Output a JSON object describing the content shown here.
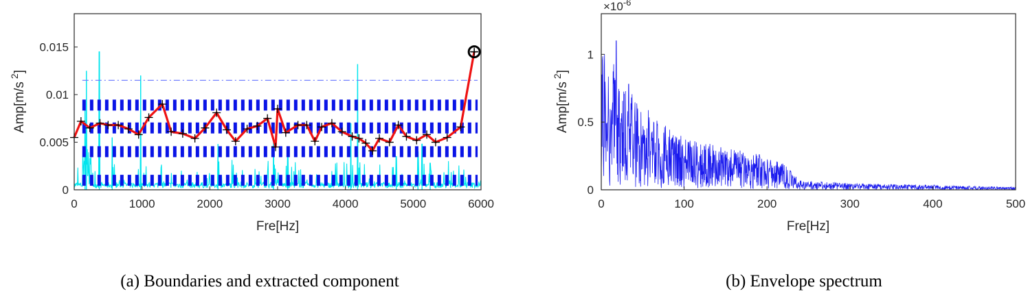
{
  "captions": {
    "a": "(a) Boundaries and extracted component",
    "b": "(b) Envelope spectrum"
  },
  "chart_data": [
    {
      "type": "line",
      "xlabel": "Fre[Hz]",
      "ylabel": "Amp[m/s 2]",
      "ylabel_main": "Amp[m/s",
      "ylabel_sup": "2",
      "ylabel_close": "]",
      "xlim": [
        0,
        6000
      ],
      "ylim": [
        0,
        0.0185
      ],
      "x_ticks": [
        "0",
        "1000",
        "2000",
        "3000",
        "4000",
        "5000",
        "6000"
      ],
      "x_tick_values": [
        0,
        1000,
        2000,
        3000,
        4000,
        5000,
        6000
      ],
      "y_ticks": [
        "0",
        "0.005",
        "0.01",
        "0.015"
      ],
      "y_tick_values": [
        0,
        0.005,
        0.01,
        0.015
      ],
      "grid": false,
      "colors": {
        "spectrum": "#00e5ee",
        "boundaries": "#0a14e6",
        "threshold": "#6f7cff",
        "component": "#ee1111",
        "markers": "#000000"
      },
      "series": [
        {
          "style": "red-line-with-plus-markers",
          "x": [
            0,
            100,
            230,
            380,
            500,
            650,
            800,
            950,
            1100,
            1300,
            1430,
            1600,
            1780,
            1930,
            2100,
            2250,
            2380,
            2550,
            2700,
            2850,
            2970,
            3000,
            3120,
            3300,
            3430,
            3550,
            3650,
            3800,
            3950,
            4100,
            4200,
            4300,
            4400,
            4500,
            4650,
            4780,
            4900,
            5050,
            5200,
            5330,
            5500,
            5700,
            5900
          ],
          "y": [
            0.0055,
            0.0072,
            0.0065,
            0.007,
            0.0068,
            0.0068,
            0.0064,
            0.0058,
            0.0076,
            0.009,
            0.0061,
            0.0059,
            0.0054,
            0.0065,
            0.0081,
            0.0063,
            0.0051,
            0.0064,
            0.0067,
            0.0075,
            0.0045,
            0.0085,
            0.006,
            0.0068,
            0.0068,
            0.0051,
            0.0066,
            0.007,
            0.0061,
            0.0056,
            0.0054,
            0.0049,
            0.0041,
            0.0054,
            0.005,
            0.0068,
            0.0056,
            0.0052,
            0.0058,
            0.005,
            0.0055,
            0.0066,
            0.0145
          ]
        },
        {
          "style": "threshold-dashdot",
          "y": 0.0115,
          "x_range": [
            120,
            5950
          ]
        }
      ],
      "boundary_levels": [
        0.001,
        0.004,
        0.0065,
        0.0089
      ],
      "spectrum_peaks": [
        {
          "x": 180,
          "y": 0.0125
        },
        {
          "x": 370,
          "y": 0.0145
        },
        {
          "x": 980,
          "y": 0.012
        },
        {
          "x": 4180,
          "y": 0.0132
        },
        {
          "x": 160,
          "y": 0.009
        },
        {
          "x": 560,
          "y": 0.0055
        },
        {
          "x": 2120,
          "y": 0.0048
        },
        {
          "x": 2940,
          "y": 0.0052
        },
        {
          "x": 3150,
          "y": 0.0045
        },
        {
          "x": 4080,
          "y": 0.007
        },
        {
          "x": 4750,
          "y": 0.0035
        },
        {
          "x": 5070,
          "y": 0.004
        },
        {
          "x": 5130,
          "y": 0.0048
        },
        {
          "x": 5250,
          "y": 0.0028
        }
      ],
      "highlight_point": {
        "x": 5900,
        "y": 0.0145
      }
    },
    {
      "type": "line",
      "xlabel": "Fre[Hz]",
      "ylabel": "Amp[m/s 2]",
      "ylabel_main": "Amp[m/s",
      "ylabel_sup": "2",
      "ylabel_close": "]",
      "exponent_base": "×10",
      "exponent_power": "-6",
      "xlim": [
        0,
        500
      ],
      "ylim": [
        0,
        1.3
      ],
      "x_ticks": [
        "0",
        "100",
        "200",
        "300",
        "400",
        "500"
      ],
      "x_tick_values": [
        0,
        100,
        200,
        300,
        400,
        500
      ],
      "y_ticks": [
        "0",
        "0.5",
        "1"
      ],
      "y_tick_values": [
        0,
        0.5,
        1
      ],
      "grid": false,
      "colors": {
        "line": "#1a1aee"
      },
      "series": [
        {
          "style": "noisy-envelope",
          "envelope_x": [
            0,
            5,
            20,
            50,
            100,
            150,
            200,
            220,
            240,
            300,
            400,
            500
          ],
          "envelope_y": [
            0.55,
            0.55,
            0.45,
            0.3,
            0.2,
            0.16,
            0.13,
            0.1,
            0.035,
            0.025,
            0.018,
            0.01
          ],
          "peaks": [
            {
              "x": 4,
              "y": 1.0
            },
            {
              "x": 18,
              "y": 1.1
            },
            {
              "x": 33,
              "y": 0.78
            }
          ]
        }
      ]
    }
  ]
}
